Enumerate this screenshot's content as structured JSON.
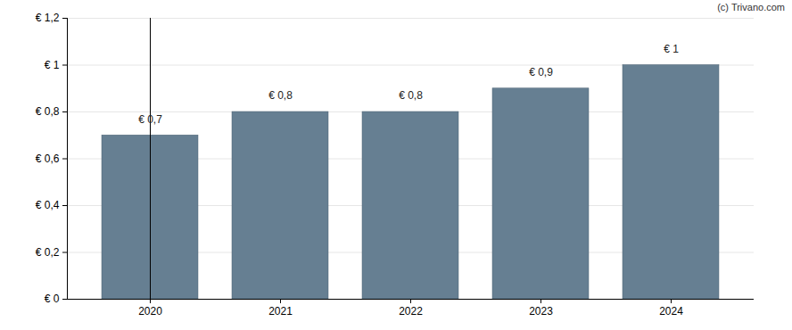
{
  "chart_data": {
    "type": "bar",
    "caption": "(c) Trivano.com",
    "categories": [
      "2020",
      "2021",
      "2022",
      "2023",
      "2024"
    ],
    "values": [
      0.7,
      0.8,
      0.8,
      0.9,
      1
    ],
    "value_labels": [
      "€ 0,7",
      "€ 0,8",
      "€ 0,8",
      "€ 0,9",
      "€ 1"
    ],
    "data_labels": true,
    "color": "#667f92",
    "ylim": [
      0,
      1.2
    ],
    "yticks": [
      {
        "value": 0,
        "label": "€ 0"
      },
      {
        "value": 0.2,
        "label": "€ 0,2"
      },
      {
        "value": 0.4,
        "label": "€ 0,4"
      },
      {
        "value": 0.6,
        "label": "€ 0,6"
      },
      {
        "value": 0.8,
        "label": "€ 0,8"
      },
      {
        "value": 1,
        "label": "€ 1"
      },
      {
        "value": 1.2,
        "label": "€ 1,2"
      }
    ],
    "grid": true
  }
}
